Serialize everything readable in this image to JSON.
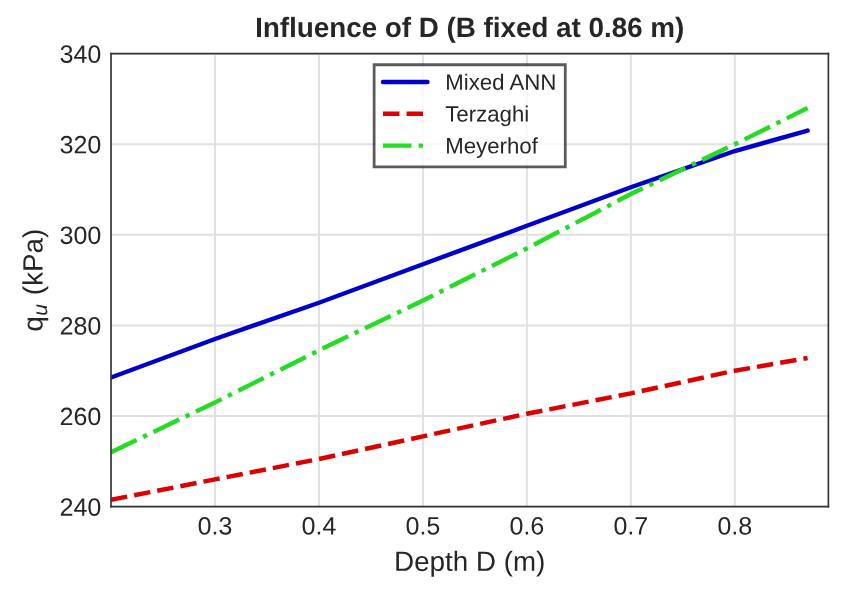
{
  "chart_data": {
    "type": "line",
    "title": "Influence of D (B fixed at 0.86 m)",
    "xlabel": "Depth D (m)",
    "ylabel": "q$_{u}$ (kPa)",
    "x": [
      0.2,
      0.3,
      0.4,
      0.5,
      0.6,
      0.7,
      0.8,
      0.87
    ],
    "series": [
      {
        "name": "Mixed ANN",
        "color": "#0000cc",
        "line_style": "solid",
        "values": [
          268.5,
          277,
          285,
          293.5,
          302,
          310.5,
          318.5,
          323
        ]
      },
      {
        "name": "Terzaghi",
        "color": "#dd0000",
        "line_style": "dashed",
        "values": [
          241.5,
          246,
          250.5,
          255.5,
          260.5,
          265,
          270,
          272.8
        ]
      },
      {
        "name": "Meyerhof",
        "color": "#22dd22",
        "line_style": "dashdot",
        "values": [
          252,
          263,
          274.5,
          285.5,
          297,
          309,
          320,
          328
        ]
      }
    ],
    "xlim": [
      0.2,
      0.89
    ],
    "ylim": [
      240,
      340
    ],
    "xticks": [
      0.3,
      0.4,
      0.5,
      0.6,
      0.7,
      0.8
    ],
    "yticks": [
      240,
      260,
      280,
      300,
      320,
      340
    ],
    "grid": true,
    "legend": "top"
  }
}
